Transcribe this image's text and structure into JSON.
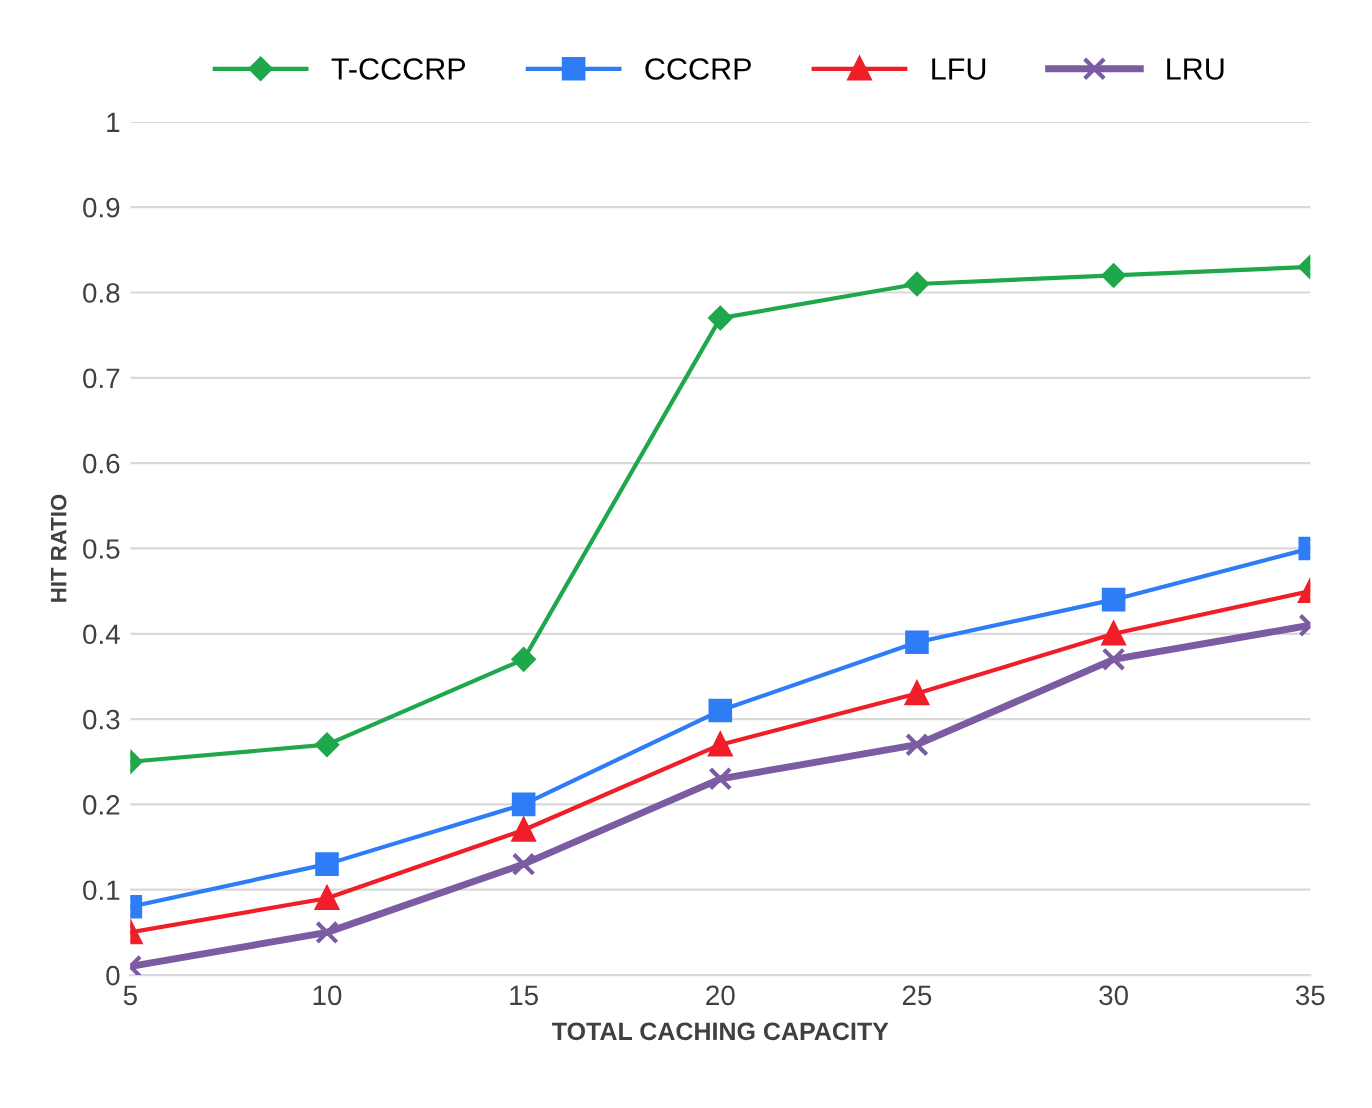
{
  "chart_data": {
    "type": "line",
    "xlabel": "TOTAL CACHING CAPACITY",
    "ylabel": "HIT RATIO",
    "x": [
      5,
      10,
      15,
      20,
      25,
      30,
      35
    ],
    "xlim": [
      5,
      35
    ],
    "xticks": [
      5,
      10,
      15,
      20,
      25,
      30,
      35
    ],
    "ylim": [
      0,
      1
    ],
    "yticks": [
      0,
      0.1,
      0.2,
      0.3,
      0.4,
      0.5,
      0.6,
      0.7,
      0.8,
      0.9,
      1
    ],
    "grid": "y",
    "legend": "top",
    "line_style": "solid",
    "series": [
      {
        "name": "T-CCCRP",
        "color": "#1ea84b",
        "marker": "diamond",
        "values": [
          0.25,
          0.27,
          0.37,
          0.77,
          0.81,
          0.82,
          0.83
        ]
      },
      {
        "name": "CCCRP",
        "color": "#2f7df6",
        "marker": "square",
        "values": [
          0.08,
          0.13,
          0.2,
          0.31,
          0.39,
          0.44,
          0.5
        ]
      },
      {
        "name": "LFU",
        "color": "#f01e28",
        "marker": "triangle",
        "values": [
          0.05,
          0.09,
          0.17,
          0.27,
          0.33,
          0.4,
          0.45
        ]
      },
      {
        "name": "LRU",
        "color": "#7b5ca3",
        "marker": "cross",
        "values": [
          0.01,
          0.05,
          0.13,
          0.23,
          0.27,
          0.37,
          0.41
        ]
      }
    ]
  }
}
